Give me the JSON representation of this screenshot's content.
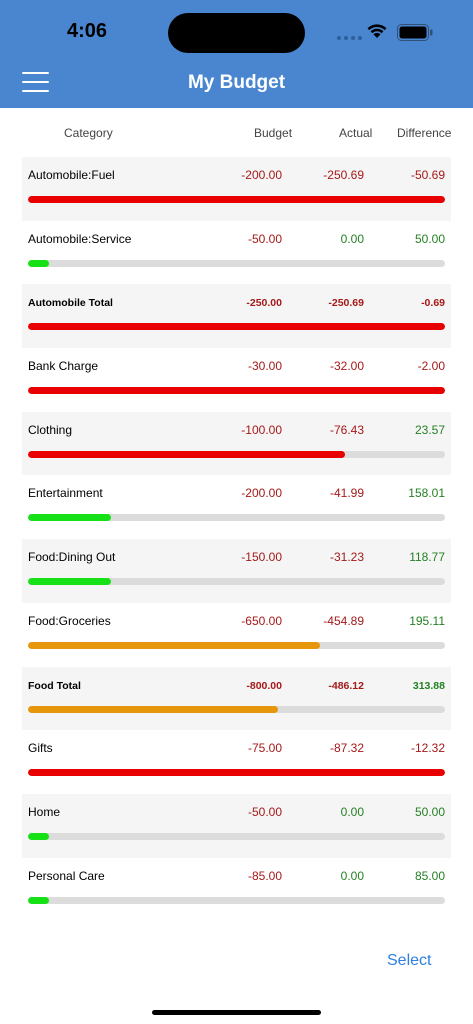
{
  "status": {
    "time": "4:06"
  },
  "nav": {
    "title": "My Budget"
  },
  "columns": {
    "category": "Category",
    "budget": "Budget",
    "actual": "Actual",
    "difference": "Difference"
  },
  "rows": [
    {
      "category": "Automobile:Fuel",
      "budget": "-200.00",
      "actual": "-250.69",
      "difference": "-50.69",
      "actual_sign": "neg",
      "diff_sign": "neg",
      "progress": 1.0,
      "bar_color": "#e80000",
      "total": false,
      "shaded": true
    },
    {
      "category": "Automobile:Service",
      "budget": "-50.00",
      "actual": "0.00",
      "difference": "50.00",
      "actual_sign": "pos",
      "diff_sign": "pos",
      "progress": 0.05,
      "bar_color": "#16e016",
      "total": false,
      "shaded": false
    },
    {
      "category": "Automobile Total",
      "budget": "-250.00",
      "actual": "-250.69",
      "difference": "-0.69",
      "actual_sign": "neg",
      "diff_sign": "neg",
      "progress": 1.0,
      "bar_color": "#e80000",
      "total": true,
      "shaded": true
    },
    {
      "category": "Bank Charge",
      "budget": "-30.00",
      "actual": "-32.00",
      "difference": "-2.00",
      "actual_sign": "neg",
      "diff_sign": "neg",
      "progress": 1.0,
      "bar_color": "#e80000",
      "total": false,
      "shaded": false
    },
    {
      "category": "Clothing",
      "budget": "-100.00",
      "actual": "-76.43",
      "difference": "23.57",
      "actual_sign": "neg",
      "diff_sign": "pos",
      "progress": 0.76,
      "bar_color": "#e80000",
      "total": false,
      "shaded": true
    },
    {
      "category": "Entertainment",
      "budget": "-200.00",
      "actual": "-41.99",
      "difference": "158.01",
      "actual_sign": "neg",
      "diff_sign": "pos",
      "progress": 0.2,
      "bar_color": "#16e016",
      "total": false,
      "shaded": false
    },
    {
      "category": "Food:Dining Out",
      "budget": "-150.00",
      "actual": "-31.23",
      "difference": "118.77",
      "actual_sign": "neg",
      "diff_sign": "pos",
      "progress": 0.2,
      "bar_color": "#16e016",
      "total": false,
      "shaded": true
    },
    {
      "category": "Food:Groceries",
      "budget": "-650.00",
      "actual": "-454.89",
      "difference": "195.11",
      "actual_sign": "neg",
      "diff_sign": "pos",
      "progress": 0.7,
      "bar_color": "#e6960a",
      "total": false,
      "shaded": false
    },
    {
      "category": "Food Total",
      "budget": "-800.00",
      "actual": "-486.12",
      "difference": "313.88",
      "actual_sign": "neg",
      "diff_sign": "pos",
      "progress": 0.6,
      "bar_color": "#e6960a",
      "total": true,
      "shaded": true
    },
    {
      "category": "Gifts",
      "budget": "-75.00",
      "actual": "-87.32",
      "difference": "-12.32",
      "actual_sign": "neg",
      "diff_sign": "neg",
      "progress": 1.0,
      "bar_color": "#e80000",
      "total": false,
      "shaded": false
    },
    {
      "category": "Home",
      "budget": "-50.00",
      "actual": "0.00",
      "difference": "50.00",
      "actual_sign": "pos",
      "diff_sign": "pos",
      "progress": 0.05,
      "bar_color": "#16e016",
      "total": false,
      "shaded": true
    },
    {
      "category": "Personal Care",
      "budget": "-85.00",
      "actual": "0.00",
      "difference": "85.00",
      "actual_sign": "pos",
      "diff_sign": "pos",
      "progress": 0.05,
      "bar_color": "#16e016",
      "total": false,
      "shaded": false
    }
  ],
  "footer": {
    "select_label": "Select"
  },
  "colors": {
    "nav_bg": "#4a86cf",
    "negative": "#a51919",
    "positive": "#248024",
    "link": "#2f7fe0"
  },
  "icons": [
    "menu-icon",
    "wifi-icon",
    "battery-icon",
    "cellular-signal-icon"
  ]
}
